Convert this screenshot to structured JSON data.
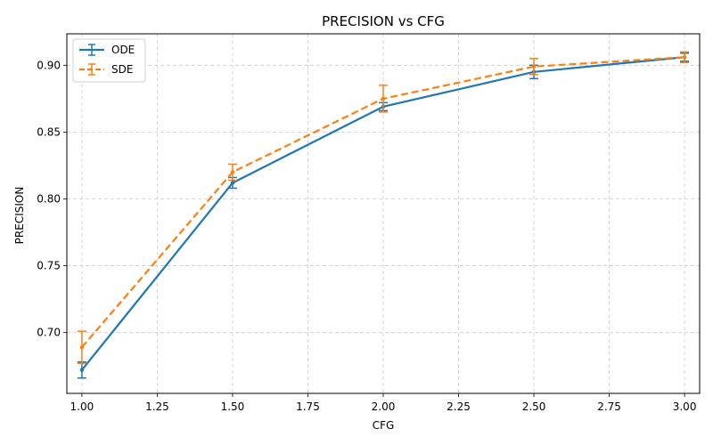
{
  "chart_data": {
    "type": "line",
    "title": "PRECISION vs CFG",
    "xlabel": "CFG",
    "ylabel": "PRECISION",
    "xlim": [
      0.95,
      3.05
    ],
    "ylim": [
      0.6545,
      0.9235
    ],
    "xticks": [
      1.0,
      1.25,
      1.5,
      1.75,
      2.0,
      2.25,
      2.5,
      2.75,
      3.0
    ],
    "xtick_labels": [
      "1.00",
      "1.25",
      "1.50",
      "1.75",
      "2.00",
      "2.25",
      "2.50",
      "2.75",
      "3.00"
    ],
    "yticks": [
      0.7,
      0.75,
      0.8,
      0.85,
      0.9
    ],
    "ytick_labels": [
      "0.70",
      "0.75",
      "0.80",
      "0.85",
      "0.90"
    ],
    "grid": true,
    "legend_position": "top-left",
    "x": [
      1.0,
      1.5,
      2.0,
      2.5,
      3.0
    ],
    "series": [
      {
        "name": "ODE",
        "values": [
          0.672,
          0.812,
          0.869,
          0.895,
          0.906
        ],
        "errors": [
          0.006,
          0.004,
          0.003,
          0.005,
          0.003
        ],
        "color": "#1f77b4",
        "linestyle": "solid"
      },
      {
        "name": "SDE",
        "values": [
          0.689,
          0.82,
          0.875,
          0.899,
          0.906
        ],
        "errors": [
          0.012,
          0.006,
          0.01,
          0.006,
          0.004
        ],
        "color": "#ff7f0e",
        "linestyle": "dashed"
      }
    ]
  }
}
